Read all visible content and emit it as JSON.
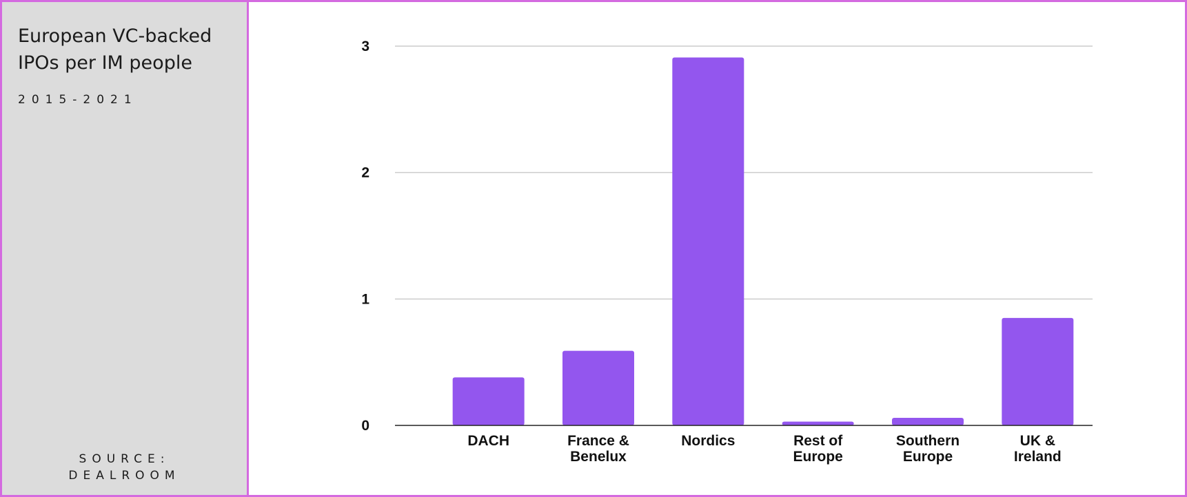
{
  "sidebar": {
    "title": "European VC-backed IPOs per IM people",
    "subtitle": "2015-2021",
    "source": "SOURCE:\nDEALROOM"
  },
  "colors": {
    "bar": "#9356ee",
    "border": "#d46ae0",
    "panel": "#dcdcdc",
    "grid": "#cccccc"
  },
  "chart_data": {
    "type": "bar",
    "categories": [
      [
        "DACH"
      ],
      [
        "France &",
        "Benelux"
      ],
      [
        "Nordics"
      ],
      [
        "Rest of",
        "Europe"
      ],
      [
        "Southern",
        "Europe"
      ],
      [
        "UK &",
        "Ireland"
      ]
    ],
    "values": [
      0.38,
      0.59,
      2.91,
      0.03,
      0.06,
      0.85
    ],
    "ylim": [
      0,
      3
    ],
    "yticks": [
      0,
      1,
      2,
      3
    ],
    "grid": true,
    "legend": "none"
  }
}
